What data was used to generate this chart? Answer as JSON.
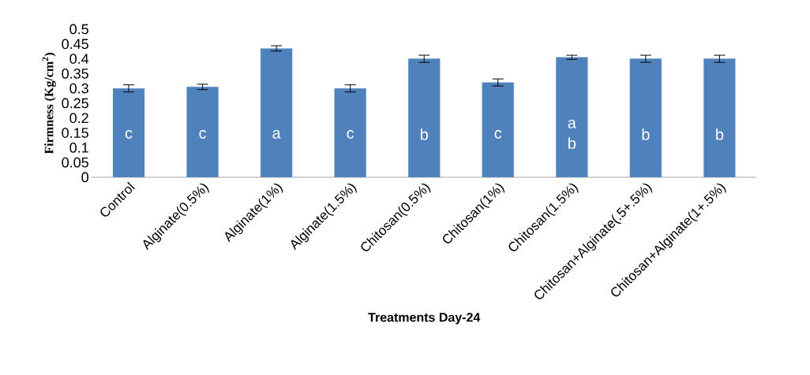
{
  "chart_data": {
    "type": "bar",
    "xlabel": "Treatments Day-24",
    "ylabel": "Firmness (Kg/cm$^{2}$)",
    "categories": [
      "Control",
      "Alginate(0.5%)",
      "Alginate(1%)",
      "Alginate(1.5%)",
      "Chitosan(0.5%)",
      "Chitosan(1%)",
      "Chitosan(1.5%)",
      "Chitosan+Alginate(.5+.5%)",
      "Chitosan+Alginate(1+.5%)"
    ],
    "values": [
      0.3,
      0.305,
      0.435,
      0.3,
      0.4,
      0.32,
      0.405,
      0.4,
      0.4
    ],
    "errors": [
      0.012,
      0.009,
      0.009,
      0.012,
      0.012,
      0.012,
      0.007,
      0.012,
      0.012
    ],
    "value_labels": [
      "c",
      "c",
      "a",
      "c",
      "b",
      "c",
      "a b",
      "b",
      "b"
    ],
    "color": "#4f81bd",
    "ylim": [
      0,
      0.5
    ],
    "yticks": [
      0,
      0.05,
      0.1,
      0.15,
      0.2,
      0.25,
      0.3,
      0.35,
      0.4,
      0.45,
      0.5
    ]
  }
}
